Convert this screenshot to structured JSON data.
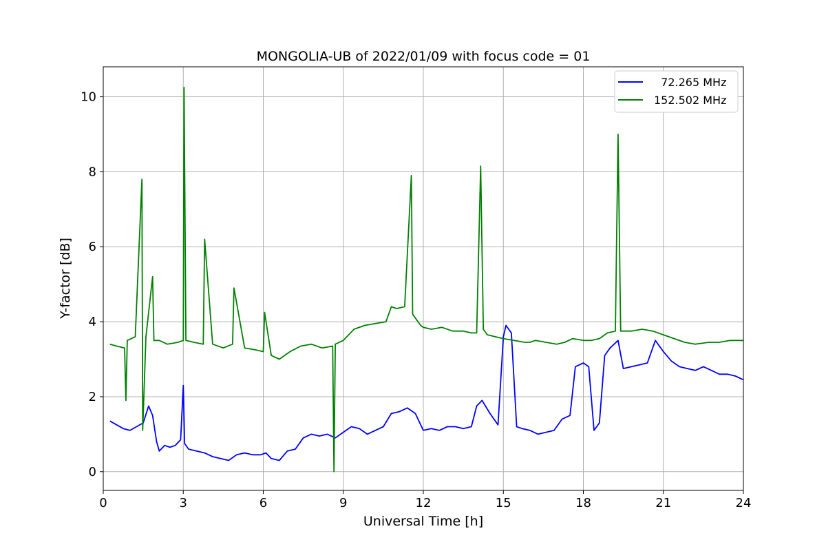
{
  "chart_data": {
    "type": "line",
    "title": "MONGOLIA-UB of 2022/01/09 with focus code = 01",
    "xlabel": "Universal Time [h]",
    "ylabel": "Y-factor [dB]",
    "xlim": [
      0,
      24
    ],
    "ylim": [
      -0.5,
      10.8
    ],
    "xticks": [
      0,
      3,
      6,
      9,
      12,
      15,
      18,
      21,
      24
    ],
    "yticks": [
      0,
      2,
      4,
      6,
      8,
      10
    ],
    "grid": true,
    "legend_position": "top-right",
    "series": [
      {
        "name": "  72.265 MHz",
        "color": "#0000ff",
        "x": [
          0.25,
          0.5,
          0.75,
          1.0,
          1.25,
          1.5,
          1.7,
          1.85,
          2.0,
          2.1,
          2.3,
          2.5,
          2.7,
          2.9,
          3.0,
          3.05,
          3.2,
          3.5,
          3.8,
          4.1,
          4.4,
          4.7,
          5.0,
          5.3,
          5.6,
          5.9,
          6.1,
          6.3,
          6.6,
          6.9,
          7.2,
          7.5,
          7.8,
          8.1,
          8.4,
          8.7,
          9.0,
          9.3,
          9.6,
          9.9,
          10.2,
          10.5,
          10.8,
          11.1,
          11.4,
          11.7,
          12.0,
          12.3,
          12.6,
          12.9,
          13.2,
          13.5,
          13.8,
          14.0,
          14.2,
          14.5,
          14.8,
          15.0,
          15.1,
          15.3,
          15.5,
          15.7,
          16.0,
          16.3,
          16.6,
          16.9,
          17.2,
          17.5,
          17.7,
          18.0,
          18.2,
          18.4,
          18.6,
          18.8,
          19.0,
          19.3,
          19.5,
          19.8,
          20.1,
          20.4,
          20.7,
          21.0,
          21.3,
          21.6,
          21.9,
          22.2,
          22.5,
          22.8,
          23.1,
          23.4,
          23.7,
          24.0
        ],
        "y": [
          1.35,
          1.25,
          1.15,
          1.1,
          1.2,
          1.3,
          1.75,
          1.5,
          0.8,
          0.55,
          0.7,
          0.65,
          0.7,
          0.85,
          2.3,
          0.75,
          0.6,
          0.55,
          0.5,
          0.4,
          0.35,
          0.3,
          0.45,
          0.5,
          0.45,
          0.45,
          0.5,
          0.35,
          0.3,
          0.55,
          0.6,
          0.9,
          1.0,
          0.95,
          1.0,
          0.9,
          1.05,
          1.2,
          1.15,
          1.0,
          1.1,
          1.2,
          1.55,
          1.6,
          1.7,
          1.55,
          1.1,
          1.15,
          1.1,
          1.2,
          1.2,
          1.15,
          1.2,
          1.75,
          1.9,
          1.55,
          1.25,
          3.6,
          3.9,
          3.7,
          1.2,
          1.15,
          1.1,
          1.0,
          1.05,
          1.1,
          1.4,
          1.5,
          2.8,
          2.9,
          2.8,
          1.1,
          1.3,
          3.1,
          3.3,
          3.5,
          2.75,
          2.8,
          2.85,
          2.9,
          3.5,
          3.2,
          2.95,
          2.8,
          2.75,
          2.7,
          2.8,
          2.7,
          2.6,
          2.6,
          2.55,
          2.45
        ]
      },
      {
        "name": "152.502 MHz",
        "color": "#008000",
        "x": [
          0.25,
          0.5,
          0.8,
          0.85,
          0.9,
          1.2,
          1.45,
          1.48,
          1.6,
          1.85,
          1.9,
          2.1,
          2.4,
          2.8,
          3.0,
          3.03,
          3.1,
          3.4,
          3.75,
          3.8,
          4.1,
          4.5,
          4.85,
          4.9,
          5.3,
          5.7,
          6.0,
          6.05,
          6.3,
          6.6,
          7.0,
          7.4,
          7.8,
          8.2,
          8.6,
          8.65,
          8.7,
          9.0,
          9.4,
          9.8,
          10.2,
          10.6,
          10.8,
          11.0,
          11.3,
          11.55,
          11.6,
          11.9,
          12.0,
          12.3,
          12.7,
          13.1,
          13.5,
          13.8,
          14.0,
          14.15,
          14.25,
          14.4,
          14.7,
          15.0,
          15.4,
          15.8,
          16.0,
          16.2,
          16.6,
          17.0,
          17.3,
          17.6,
          18.0,
          18.3,
          18.6,
          18.9,
          19.2,
          19.3,
          19.4,
          19.8,
          20.2,
          20.6,
          21.0,
          21.4,
          21.8,
          22.2,
          22.7,
          23.1,
          23.5,
          24.0
        ],
        "y": [
          3.4,
          3.35,
          3.3,
          1.9,
          3.5,
          3.6,
          7.8,
          1.1,
          3.6,
          5.2,
          3.5,
          3.5,
          3.4,
          3.45,
          3.5,
          10.25,
          3.5,
          3.45,
          3.4,
          6.2,
          3.4,
          3.3,
          3.4,
          4.9,
          3.3,
          3.25,
          3.2,
          4.25,
          3.1,
          3.0,
          3.2,
          3.35,
          3.4,
          3.3,
          3.35,
          0.0,
          3.4,
          3.5,
          3.8,
          3.9,
          3.95,
          4.0,
          4.4,
          4.35,
          4.4,
          7.9,
          4.2,
          3.9,
          3.85,
          3.8,
          3.85,
          3.75,
          3.75,
          3.7,
          3.7,
          8.15,
          3.8,
          3.65,
          3.6,
          3.55,
          3.5,
          3.45,
          3.45,
          3.5,
          3.45,
          3.4,
          3.45,
          3.55,
          3.5,
          3.5,
          3.55,
          3.7,
          3.75,
          9.0,
          3.75,
          3.75,
          3.8,
          3.75,
          3.65,
          3.55,
          3.45,
          3.4,
          3.45,
          3.45,
          3.5,
          3.5
        ]
      }
    ]
  }
}
